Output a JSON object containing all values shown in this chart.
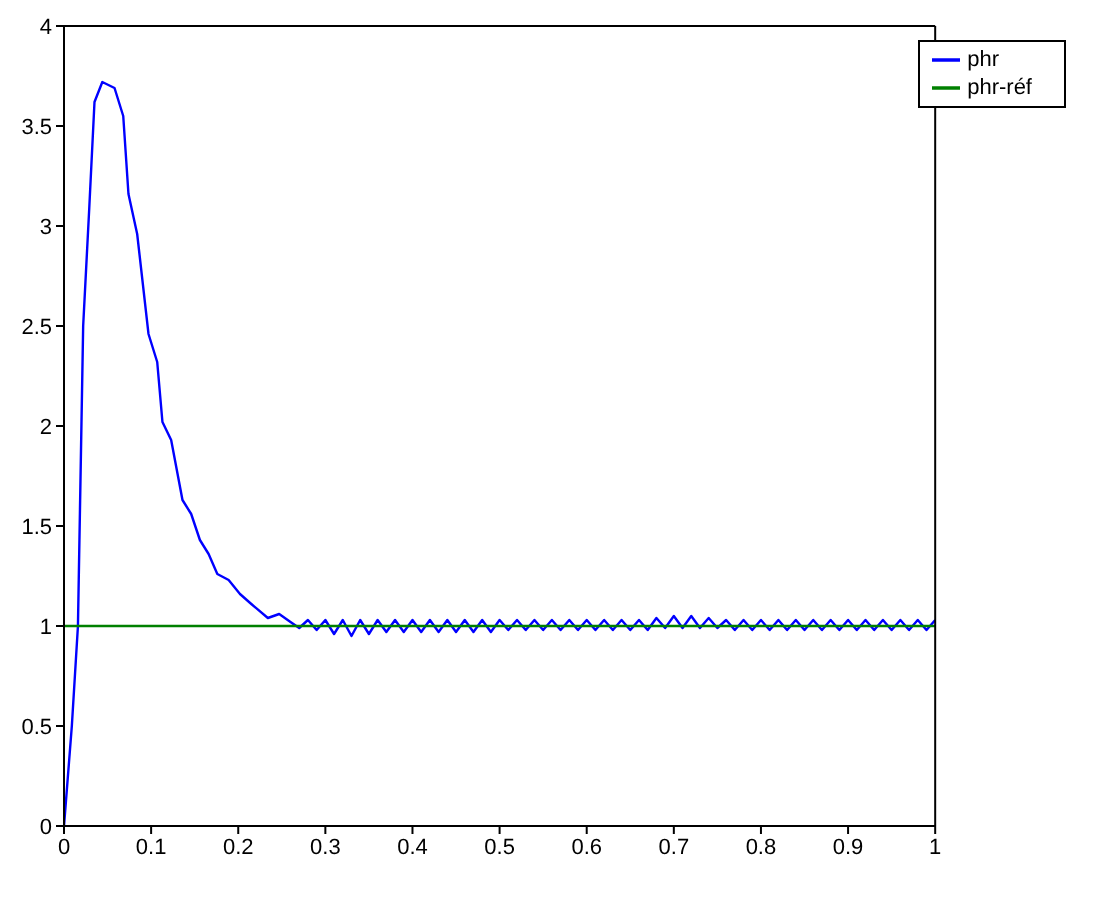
{
  "chart_data": {
    "type": "line",
    "xlim": [
      0,
      1
    ],
    "ylim": [
      0,
      4
    ],
    "xticks": [
      0,
      0.1,
      0.2,
      0.3,
      0.4,
      0.5,
      0.6,
      0.7,
      0.8,
      0.9,
      1
    ],
    "yticks": [
      0,
      0.5,
      1,
      1.5,
      2,
      2.5,
      3,
      3.5,
      4
    ],
    "legend": "top right",
    "marker": "none",
    "line_style": "solid",
    "series": [
      {
        "name": "phr",
        "color": "#0000ff",
        "x": [
          0,
          0.009,
          0.016,
          0.022,
          0.029,
          0.035,
          0.044,
          0.058,
          0.068,
          0.074,
          0.084,
          0.097,
          0.107,
          0.113,
          0.123,
          0.136,
          0.146,
          0.156,
          0.166,
          0.176,
          0.189,
          0.202,
          0.215,
          0.234,
          0.247,
          0.26,
          0.27,
          0.28,
          0.29,
          0.3,
          0.31,
          0.32,
          0.33,
          0.34,
          0.35,
          0.36,
          0.37,
          0.38,
          0.39,
          0.4,
          0.41,
          0.42,
          0.43,
          0.44,
          0.45,
          0.46,
          0.47,
          0.48,
          0.49,
          0.5,
          0.51,
          0.52,
          0.53,
          0.54,
          0.55,
          0.56,
          0.57,
          0.58,
          0.59,
          0.6,
          0.61,
          0.62,
          0.63,
          0.64,
          0.65,
          0.66,
          0.67,
          0.68,
          0.69,
          0.7,
          0.71,
          0.72,
          0.73,
          0.74,
          0.75,
          0.76,
          0.77,
          0.78,
          0.79,
          0.8,
          0.81,
          0.82,
          0.83,
          0.84,
          0.85,
          0.86,
          0.87,
          0.88,
          0.89,
          0.9,
          0.91,
          0.92,
          0.93,
          0.94,
          0.95,
          0.96,
          0.97,
          0.98,
          0.99,
          1
        ],
        "values": [
          0,
          0.5,
          1,
          2.5,
          3.09,
          3.62,
          3.72,
          3.69,
          3.55,
          3.16,
          2.96,
          2.46,
          2.32,
          2.02,
          1.93,
          1.63,
          1.56,
          1.43,
          1.36,
          1.26,
          1.23,
          1.16,
          1.11,
          1.04,
          1.06,
          1.02,
          0.99,
          1.03,
          0.98,
          1.03,
          0.96,
          1.03,
          0.95,
          1.03,
          0.96,
          1.03,
          0.97,
          1.03,
          0.97,
          1.03,
          0.97,
          1.03,
          0.97,
          1.03,
          0.97,
          1.03,
          0.97,
          1.03,
          0.97,
          1.03,
          0.98,
          1.03,
          0.98,
          1.03,
          0.98,
          1.03,
          0.98,
          1.03,
          0.98,
          1.03,
          0.98,
          1.03,
          0.98,
          1.03,
          0.98,
          1.03,
          0.98,
          1.04,
          0.99,
          1.05,
          0.99,
          1.05,
          0.99,
          1.04,
          0.99,
          1.03,
          0.98,
          1.03,
          0.98,
          1.03,
          0.98,
          1.03,
          0.98,
          1.03,
          0.98,
          1.03,
          0.98,
          1.03,
          0.98,
          1.03,
          0.98,
          1.03,
          0.98,
          1.03,
          0.98,
          1.03,
          0.98,
          1.03,
          0.98,
          1.03
        ]
      },
      {
        "name": "phr-réf",
        "color": "#008000",
        "x": [
          0,
          1
        ],
        "values": [
          1,
          1
        ]
      }
    ]
  }
}
